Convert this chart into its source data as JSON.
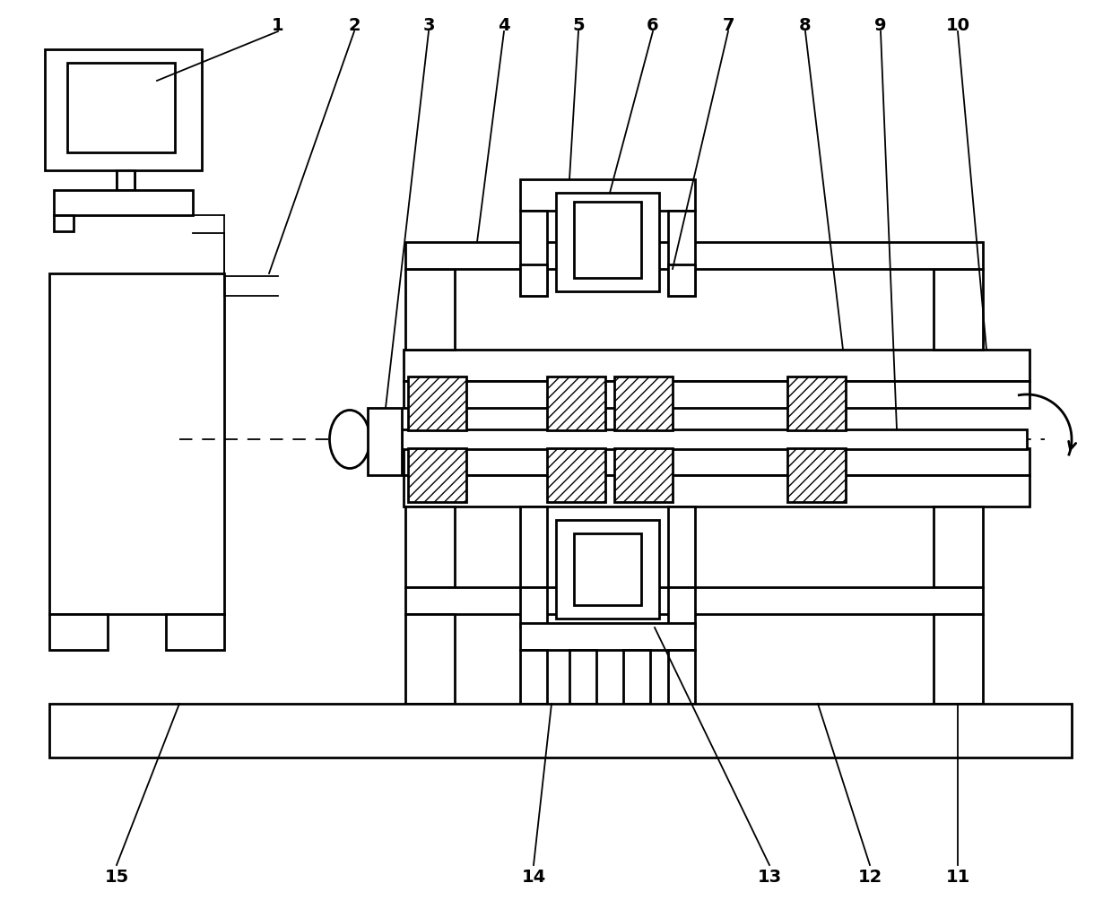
{
  "bg_color": "#ffffff",
  "lw": 2.0,
  "lw_thin": 1.3,
  "fig_width": 12.4,
  "fig_height": 10.14
}
